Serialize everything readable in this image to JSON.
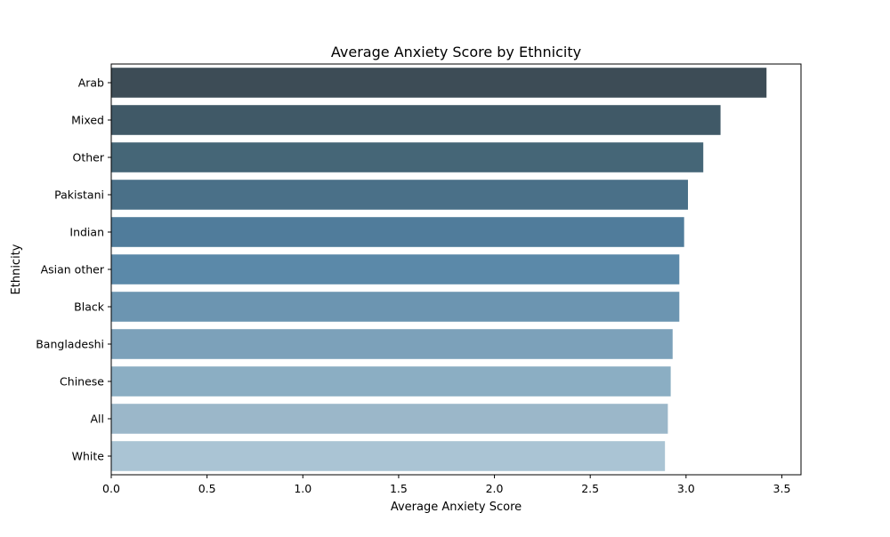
{
  "chart_data": {
    "type": "bar",
    "orientation": "horizontal",
    "title": "Average Anxiety Score by Ethnicity",
    "xlabel": "Average Anxiety Score",
    "ylabel": "Ethnicity",
    "categories": [
      "Arab",
      "Mixed",
      "Other ",
      "Pakistani",
      "Indian",
      "Asian other",
      "Black",
      "Bangladeshi",
      "Chinese",
      "All",
      "White"
    ],
    "values": [
      3.42,
      3.18,
      3.09,
      3.01,
      2.99,
      2.965,
      2.965,
      2.93,
      2.92,
      2.905,
      2.89
    ],
    "colors": [
      "#3d4c56",
      "#405967",
      "#456677",
      "#4a7088",
      "#507c9b",
      "#5b89a9",
      "#6c95b1",
      "#7ca1ba",
      "#8baec3",
      "#9bb7c9",
      "#aac4d4"
    ],
    "xlim": [
      0,
      3.6
    ],
    "xticks": [
      "0.0",
      "0.5",
      "1.0",
      "1.5",
      "2.0",
      "2.5",
      "3.0",
      "3.5"
    ],
    "grid": false,
    "legend": "none"
  }
}
